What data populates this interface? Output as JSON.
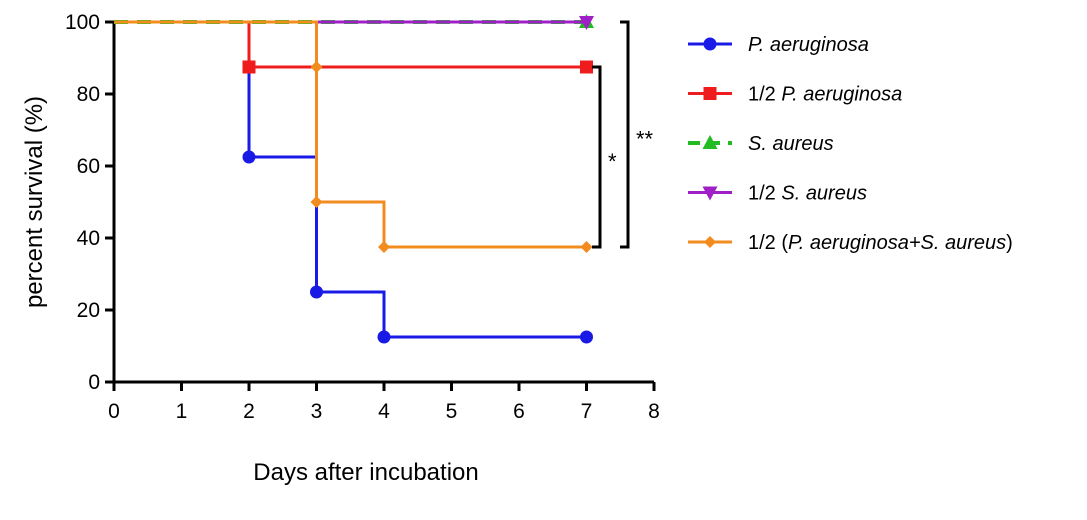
{
  "chart_data": {
    "type": "line",
    "step": true,
    "xlabel": "Days after incubation",
    "ylabel": "percent survival (%)",
    "xlim": [
      0,
      8
    ],
    "ylim": [
      0,
      100
    ],
    "xticks": [
      0,
      1,
      2,
      3,
      4,
      5,
      6,
      7,
      8
    ],
    "yticks": [
      0,
      20,
      40,
      60,
      80,
      100
    ],
    "grid": false,
    "legend": "right",
    "series": [
      {
        "name": "P. aeruginosa",
        "italic": [
          [
            0,
            13
          ]
        ],
        "color": "#1a1ae6",
        "marker": "circle",
        "dash": "solid",
        "points": [
          [
            0,
            100
          ],
          [
            2,
            62.5
          ],
          [
            3,
            25
          ],
          [
            4,
            12.5
          ],
          [
            7,
            12.5
          ]
        ]
      },
      {
        "name": "1/2 P. aeruginosa",
        "italic": [
          [
            4,
            17
          ]
        ],
        "color": "#ee1c1c",
        "marker": "square",
        "dash": "solid",
        "points": [
          [
            0,
            100
          ],
          [
            2,
            87.5
          ],
          [
            7,
            87.5
          ]
        ]
      },
      {
        "name": "S. aureus",
        "italic": [
          [
            0,
            9
          ]
        ],
        "color": "#22bb22",
        "marker": "triangle-up",
        "dash": "dashed",
        "points": [
          [
            0,
            100
          ],
          [
            7,
            100
          ]
        ]
      },
      {
        "name": "1/2 S. aureus",
        "italic": [
          [
            4,
            13
          ]
        ],
        "color": "#a020c8",
        "marker": "triangle-down",
        "dash": "solid",
        "points": [
          [
            0,
            100
          ],
          [
            7,
            100
          ]
        ]
      },
      {
        "name": "1/2 (P. aeruginosa+S. aureus)",
        "italic": [
          [
            5,
            28
          ]
        ],
        "color": "#f28c1e",
        "marker": "diamond",
        "dash": "solid",
        "points": [
          [
            0,
            100
          ],
          [
            3,
            87.5
          ],
          [
            3,
            50
          ],
          [
            4,
            37.5
          ],
          [
            7,
            37.5
          ]
        ]
      }
    ],
    "annotations": [
      {
        "label": "*",
        "y_top": 87.5,
        "y_bottom": 37.5
      },
      {
        "label": "**",
        "y_top": 100,
        "y_bottom": 37.5
      }
    ]
  }
}
